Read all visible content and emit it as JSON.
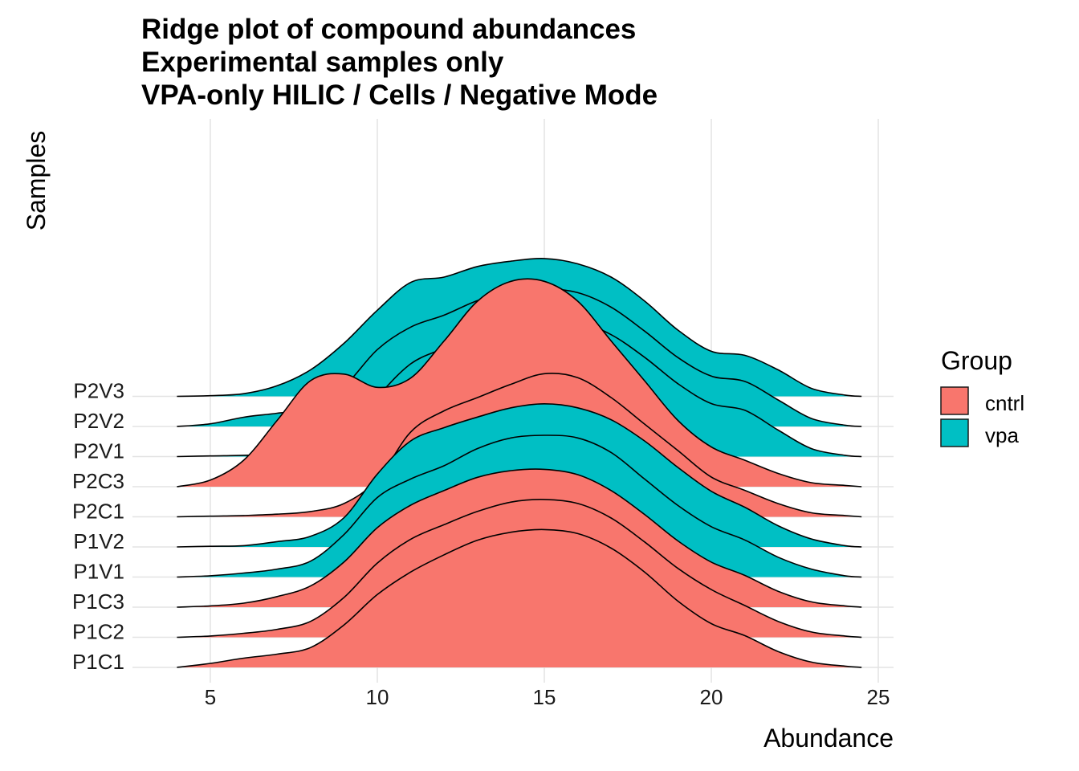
{
  "chart_data": {
    "type": "ridgeline",
    "title_lines": [
      "Ridge plot of compound abundances",
      "Experimental samples only",
      "VPA-only HILIC / Cells / Negative Mode"
    ],
    "xlabel": "Abundance",
    "ylabel": "Samples",
    "xlim": [
      3,
      25.5
    ],
    "x_ticks": [
      5,
      10,
      15,
      20,
      25
    ],
    "grid": true,
    "legend": {
      "title": "Group",
      "position": "right",
      "items": [
        {
          "label": "cntrl",
          "color": "#F8766D"
        },
        {
          "label": "vpa",
          "color": "#00BFC4"
        }
      ]
    },
    "density_x": [
      4,
      5,
      6,
      7,
      8,
      9,
      10,
      11,
      12,
      13,
      14,
      15,
      16,
      17,
      18,
      19,
      20,
      21,
      22,
      23,
      24,
      24.5
    ],
    "series": [
      {
        "name": "P1C1",
        "group": "cntrl",
        "density": [
          0,
          0.03,
          0.07,
          0.1,
          0.15,
          0.32,
          0.55,
          0.72,
          0.85,
          0.96,
          1.02,
          1.04,
          1.01,
          0.9,
          0.72,
          0.5,
          0.33,
          0.24,
          0.12,
          0.04,
          0.01,
          0
        ]
      },
      {
        "name": "P1C2",
        "group": "cntrl",
        "density": [
          0,
          0.01,
          0.03,
          0.06,
          0.12,
          0.3,
          0.56,
          0.74,
          0.85,
          0.95,
          1.02,
          1.04,
          1.01,
          0.9,
          0.72,
          0.52,
          0.36,
          0.24,
          0.12,
          0.04,
          0.01,
          0
        ]
      },
      {
        "name": "P1C3",
        "group": "cntrl",
        "density": [
          0,
          0.01,
          0.03,
          0.08,
          0.16,
          0.34,
          0.6,
          0.77,
          0.88,
          0.98,
          1.03,
          1.04,
          1.0,
          0.88,
          0.7,
          0.5,
          0.34,
          0.24,
          0.12,
          0.04,
          0.01,
          0
        ]
      },
      {
        "name": "P1V1",
        "group": "vpa",
        "density": [
          0,
          0.01,
          0.03,
          0.06,
          0.12,
          0.32,
          0.6,
          0.74,
          0.84,
          0.97,
          1.05,
          1.07,
          1.05,
          0.94,
          0.74,
          0.54,
          0.38,
          0.28,
          0.15,
          0.06,
          0.01,
          0
        ]
      },
      {
        "name": "P1V2",
        "group": "vpa",
        "density": [
          0,
          0.005,
          0.01,
          0.04,
          0.08,
          0.22,
          0.55,
          0.8,
          0.9,
          0.98,
          1.05,
          1.08,
          1.05,
          0.96,
          0.8,
          0.6,
          0.42,
          0.3,
          0.16,
          0.06,
          0.01,
          0
        ]
      },
      {
        "name": "P2C1",
        "group": "cntrl",
        "density": [
          0,
          0.005,
          0.01,
          0.02,
          0.04,
          0.1,
          0.28,
          0.64,
          0.8,
          0.9,
          1.0,
          1.08,
          1.05,
          0.9,
          0.7,
          0.5,
          0.3,
          0.2,
          0.1,
          0.03,
          0.01,
          0
        ]
      },
      {
        "name": "P2C3",
        "group": "cntrl",
        "density": [
          0,
          0.05,
          0.2,
          0.5,
          0.8,
          0.85,
          0.75,
          0.82,
          1.1,
          1.4,
          1.55,
          1.55,
          1.4,
          1.1,
          0.8,
          0.5,
          0.3,
          0.2,
          0.1,
          0.03,
          0.01,
          0
        ]
      },
      {
        "name": "P2V1",
        "group": "vpa",
        "density": [
          0,
          0.005,
          0.01,
          0.02,
          0.05,
          0.15,
          0.45,
          0.7,
          0.82,
          0.95,
          1.02,
          1.04,
          1.02,
          0.92,
          0.75,
          0.55,
          0.4,
          0.35,
          0.2,
          0.06,
          0.01,
          0
        ]
      },
      {
        "name": "P2V2",
        "group": "vpa",
        "density": [
          0,
          0.02,
          0.07,
          0.1,
          0.14,
          0.3,
          0.58,
          0.75,
          0.84,
          0.95,
          1.02,
          1.04,
          1.01,
          0.9,
          0.72,
          0.52,
          0.38,
          0.34,
          0.2,
          0.06,
          0.01,
          0
        ]
      },
      {
        "name": "P2V3",
        "group": "vpa",
        "density": [
          0,
          0.005,
          0.02,
          0.08,
          0.2,
          0.4,
          0.65,
          0.86,
          0.9,
          0.98,
          1.02,
          1.04,
          1.0,
          0.9,
          0.72,
          0.5,
          0.34,
          0.31,
          0.2,
          0.06,
          0.01,
          0
        ]
      }
    ]
  }
}
